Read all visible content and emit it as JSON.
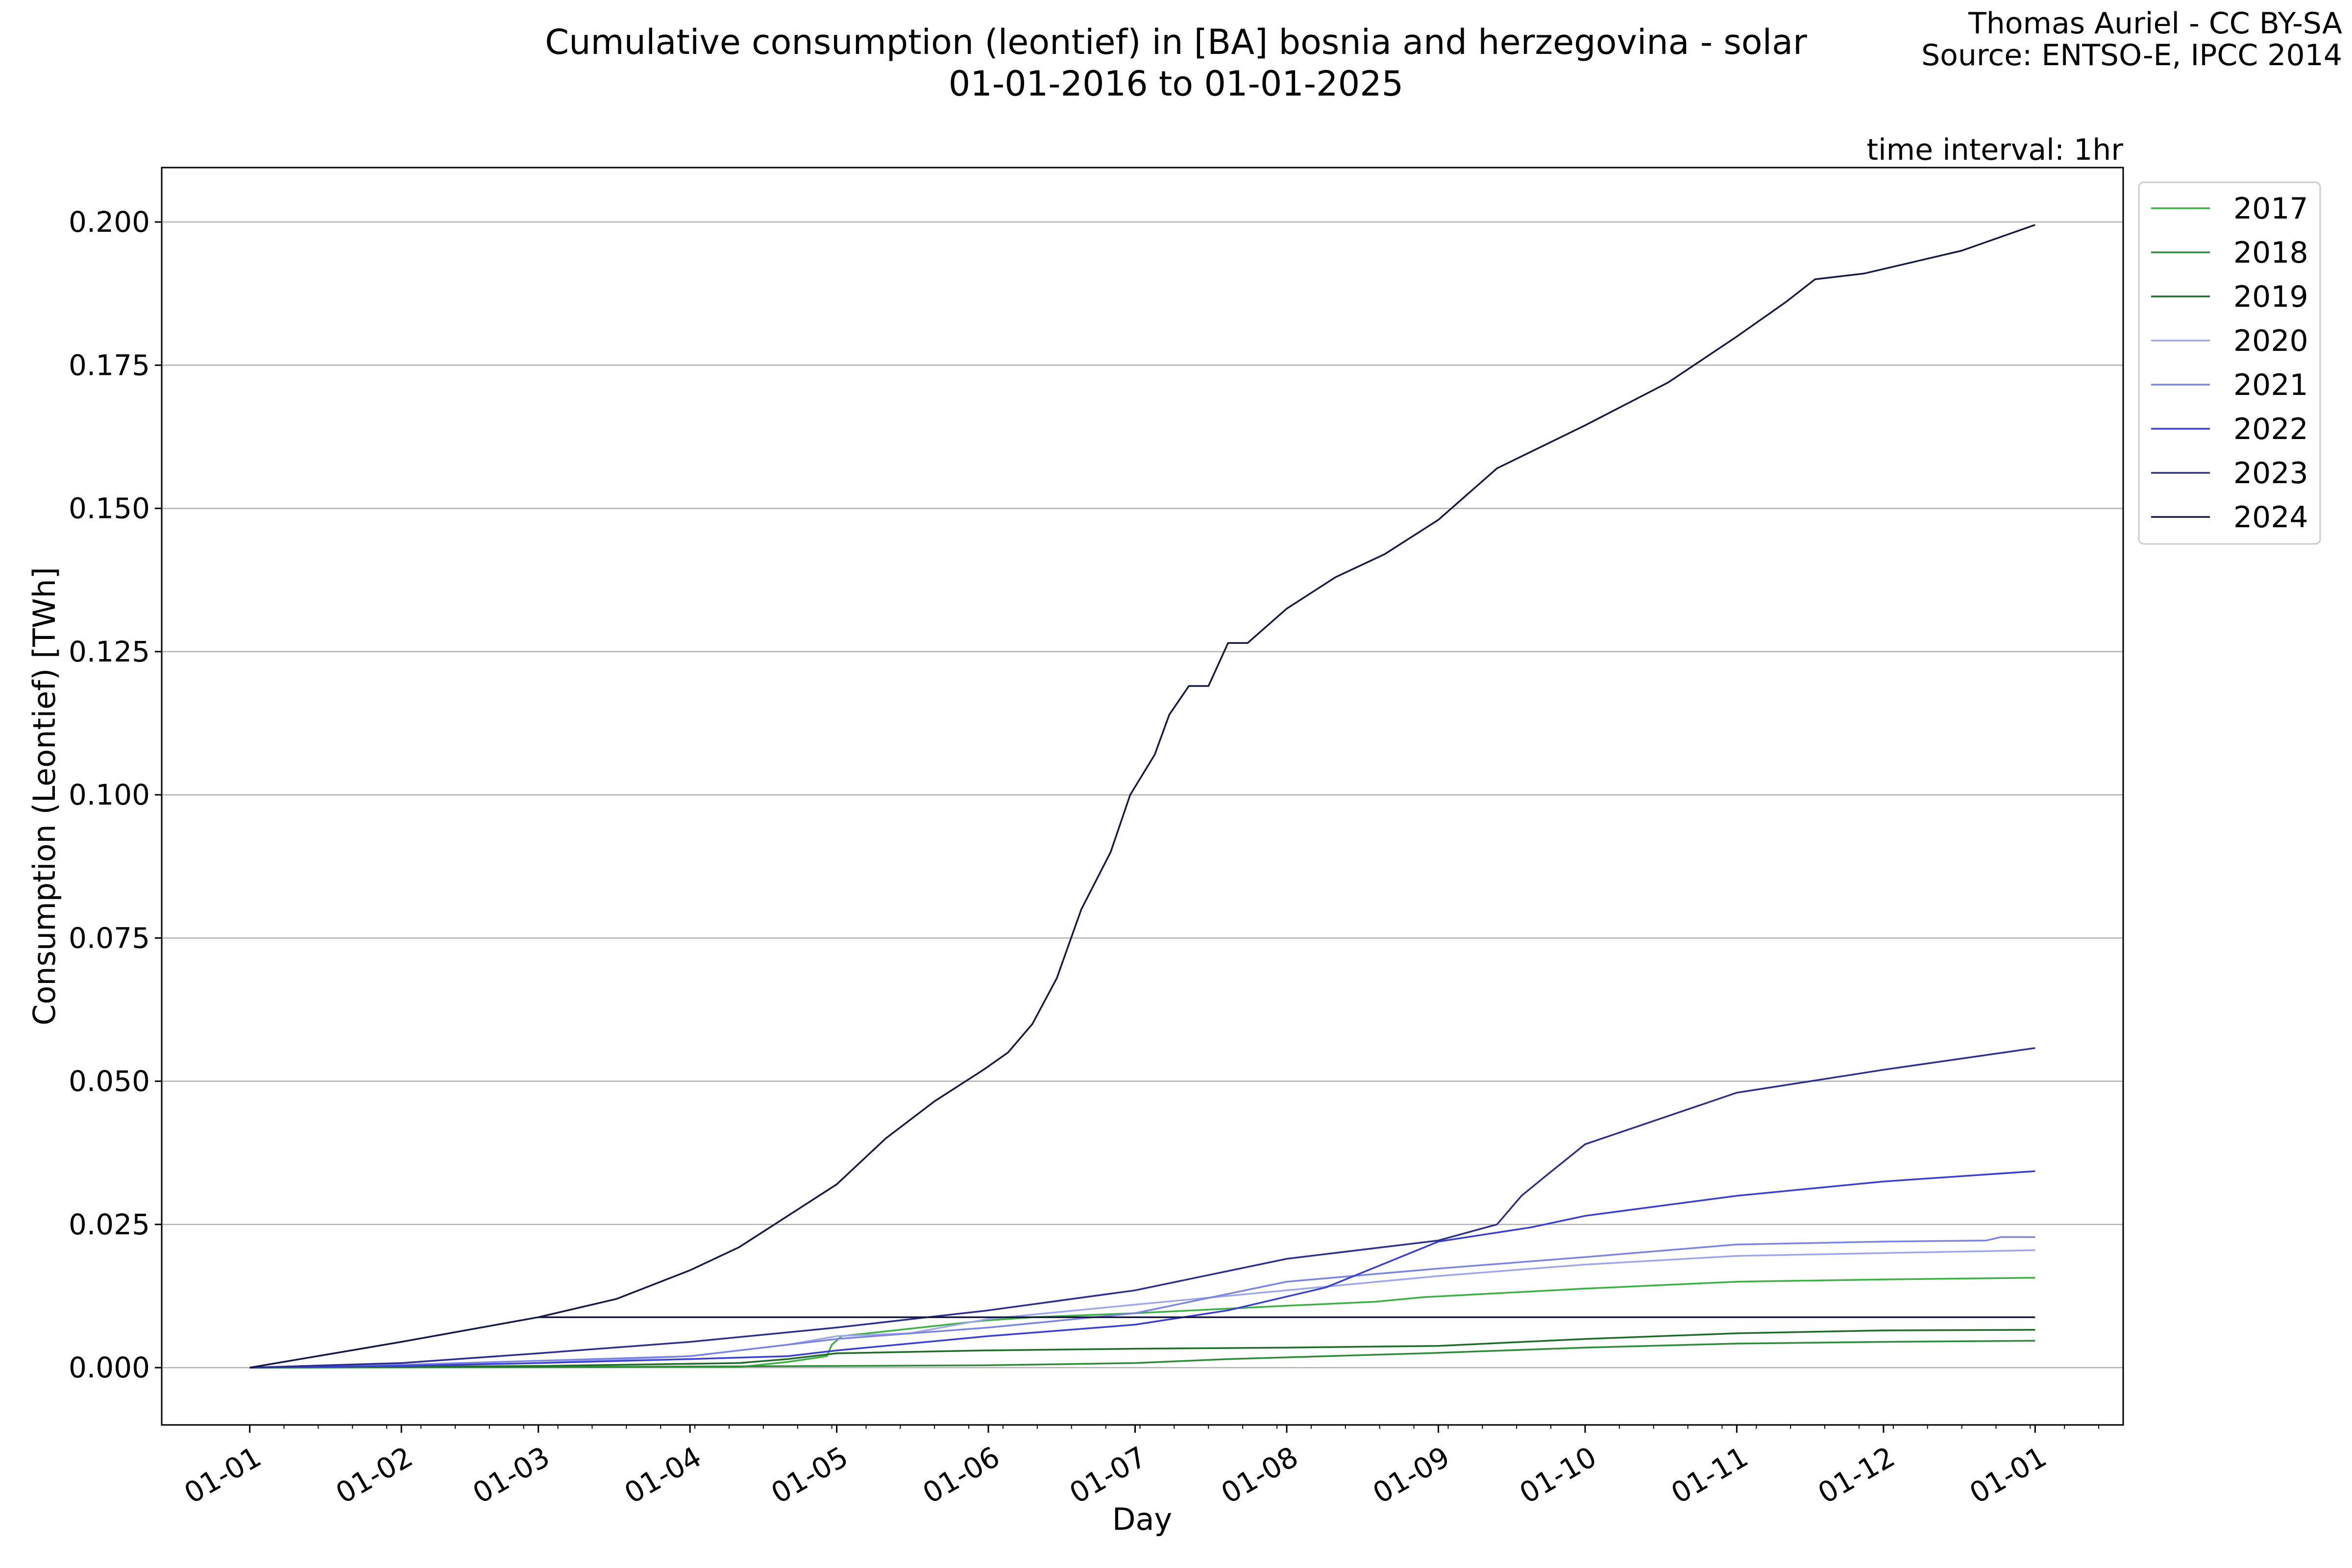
{
  "header": {
    "title_line1": "Cumulative consumption (leontief) in [BA] bosnia and herzegovina - solar",
    "title_line2": "01-01-2016 to 01-01-2025",
    "credit_line1": "Thomas Auriel - CC BY-SA",
    "credit_line2": "Source: ENTSO-E, IPCC 2014",
    "interval_label": "time interval: 1hr"
  },
  "chart_data": {
    "type": "line",
    "xlabel": "Day",
    "ylabel": "Consumption (Leontief) [TWh]",
    "x_tick_labels": [
      "01-01",
      "01-02",
      "01-03",
      "01-04",
      "01-05",
      "01-06",
      "01-07",
      "01-08",
      "01-09",
      "01-10",
      "01-11",
      "01-12",
      "01-01"
    ],
    "x_tick_days": [
      0,
      31,
      59,
      90,
      120,
      151,
      181,
      212,
      243,
      273,
      304,
      334,
      365
    ],
    "xlim": [
      -18,
      383
    ],
    "ylim": [
      -0.01,
      0.2095
    ],
    "y_ticks": [
      0.0,
      0.025,
      0.05,
      0.075,
      0.1,
      0.125,
      0.15,
      0.175,
      0.2
    ],
    "y_tick_labels": [
      "0.000",
      "0.025",
      "0.050",
      "0.075",
      "0.100",
      "0.125",
      "0.150",
      "0.175",
      "0.200"
    ],
    "grid": "horizontal",
    "legend_position": "outside top-right",
    "series": [
      {
        "name": "2017",
        "color": "#3cb043",
        "points": [
          [
            0,
            0
          ],
          [
            100,
            0.0001
          ],
          [
            110,
            0.001
          ],
          [
            118,
            0.002
          ],
          [
            119,
            0.004
          ],
          [
            121,
            0.0055
          ],
          [
            150,
            0.0082
          ],
          [
            160,
            0.0088
          ],
          [
            181,
            0.0095
          ],
          [
            212,
            0.0108
          ],
          [
            230,
            0.0115
          ],
          [
            240,
            0.0123
          ],
          [
            273,
            0.0138
          ],
          [
            304,
            0.015
          ],
          [
            334,
            0.0154
          ],
          [
            365,
            0.0157
          ]
        ]
      },
      {
        "name": "2018",
        "color": "#2e8b3a",
        "points": [
          [
            0,
            0
          ],
          [
            60,
            0.0001
          ],
          [
            90,
            0.0002
          ],
          [
            150,
            0.0004
          ],
          [
            181,
            0.0008
          ],
          [
            200,
            0.0015
          ],
          [
            240,
            0.0025
          ],
          [
            273,
            0.0035
          ],
          [
            304,
            0.0042
          ],
          [
            334,
            0.0045
          ],
          [
            365,
            0.0047
          ]
        ]
      },
      {
        "name": "2019",
        "color": "#1f6b2a",
        "points": [
          [
            0,
            0
          ],
          [
            60,
            0.0003
          ],
          [
            100,
            0.0008
          ],
          [
            110,
            0.0015
          ],
          [
            120,
            0.0025
          ],
          [
            150,
            0.003
          ],
          [
            181,
            0.0033
          ],
          [
            212,
            0.0035
          ],
          [
            243,
            0.0038
          ],
          [
            273,
            0.005
          ],
          [
            304,
            0.006
          ],
          [
            334,
            0.0065
          ],
          [
            365,
            0.0066
          ]
        ]
      },
      {
        "name": "2020",
        "color": "#9fa6ea",
        "points": [
          [
            0,
            0
          ],
          [
            31,
            0.0003
          ],
          [
            59,
            0.0008
          ],
          [
            90,
            0.002
          ],
          [
            110,
            0.004
          ],
          [
            120,
            0.0055
          ],
          [
            135,
            0.006
          ],
          [
            151,
            0.0085
          ],
          [
            181,
            0.011
          ],
          [
            212,
            0.0135
          ],
          [
            243,
            0.016
          ],
          [
            273,
            0.018
          ],
          [
            304,
            0.0195
          ],
          [
            334,
            0.02
          ],
          [
            365,
            0.0205
          ]
        ]
      },
      {
        "name": "2021",
        "color": "#7b84e0",
        "points": [
          [
            0,
            0
          ],
          [
            31,
            0.0005
          ],
          [
            59,
            0.0012
          ],
          [
            90,
            0.002
          ],
          [
            120,
            0.005
          ],
          [
            151,
            0.007
          ],
          [
            181,
            0.0095
          ],
          [
            212,
            0.015
          ],
          [
            243,
            0.0173
          ],
          [
            273,
            0.0193
          ],
          [
            304,
            0.0215
          ],
          [
            334,
            0.022
          ],
          [
            355,
            0.0222
          ],
          [
            358,
            0.0228
          ],
          [
            365,
            0.0228
          ]
        ]
      },
      {
        "name": "2022",
        "color": "#3a3fd0",
        "points": [
          [
            0,
            0
          ],
          [
            31,
            0.0003
          ],
          [
            59,
            0.0008
          ],
          [
            90,
            0.0015
          ],
          [
            110,
            0.002
          ],
          [
            120,
            0.003
          ],
          [
            151,
            0.0055
          ],
          [
            181,
            0.0075
          ],
          [
            200,
            0.01
          ],
          [
            220,
            0.014
          ],
          [
            243,
            0.022
          ],
          [
            262,
            0.0245
          ],
          [
            273,
            0.0265
          ],
          [
            304,
            0.03
          ],
          [
            334,
            0.0325
          ],
          [
            365,
            0.0343
          ]
        ]
      },
      {
        "name": "2023",
        "color": "#2d2f8c",
        "points": [
          [
            0,
            0
          ],
          [
            31,
            0.0008
          ],
          [
            59,
            0.0025
          ],
          [
            90,
            0.0045
          ],
          [
            120,
            0.007
          ],
          [
            151,
            0.01
          ],
          [
            181,
            0.0135
          ],
          [
            212,
            0.019
          ],
          [
            243,
            0.0222
          ],
          [
            255,
            0.025
          ],
          [
            260,
            0.03
          ],
          [
            265,
            0.0335
          ],
          [
            273,
            0.039
          ],
          [
            304,
            0.048
          ],
          [
            334,
            0.052
          ],
          [
            365,
            0.0558
          ]
        ]
      },
      {
        "name": "2024",
        "color": "#141a45",
        "points": [
          [
            0,
            0
          ],
          [
            31,
            0.0045
          ],
          [
            59,
            0.0088
          ],
          [
            75,
            0.012
          ],
          [
            90,
            0.017
          ],
          [
            100,
            0.021
          ],
          [
            110,
            0.0265
          ],
          [
            120,
            0.032
          ],
          [
            130,
            0.04
          ],
          [
            140,
            0.0465
          ],
          [
            150,
            0.052
          ],
          [
            155,
            0.055
          ],
          [
            160,
            0.06
          ],
          [
            165,
            0.068
          ],
          [
            170,
            0.08
          ],
          [
            176,
            0.09
          ],
          [
            180,
            0.1
          ],
          [
            185,
            0.107
          ],
          [
            188,
            0.114
          ],
          [
            192,
            0.119
          ],
          [
            196,
            0.119
          ],
          [
            200,
            0.1265
          ],
          [
            204,
            0.1265
          ],
          [
            212,
            0.1325
          ],
          [
            222,
            0.138
          ],
          [
            232,
            0.142
          ],
          [
            243,
            0.148
          ],
          [
            255,
            0.157
          ],
          [
            273,
            0.1645
          ],
          [
            290,
            0.172
          ],
          [
            304,
            0.18
          ],
          [
            314,
            0.186
          ],
          [
            320,
            0.19
          ],
          [
            330,
            0.191
          ],
          [
            340,
            0.193
          ],
          [
            350,
            0.195
          ],
          [
            365,
            0.1995
          ]
        ]
      },
      {
        "name": "",
        "color": "#141a45",
        "points": [
          [
            59,
            0.0088
          ],
          [
            365,
            0.0088
          ]
        ]
      }
    ]
  }
}
